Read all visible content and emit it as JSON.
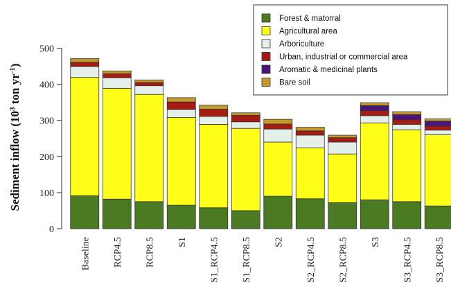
{
  "chart_data": {
    "type": "bar",
    "stacked": true,
    "ylabel_main": "Sediment inflow (10",
    "ylabel_sup1": "3",
    "ylabel_mid": " ton yr",
    "ylabel_sup2": "-1",
    "ylabel_end": ")",
    "ylim": [
      0,
      500
    ],
    "yticks": [
      0,
      100,
      200,
      300,
      400,
      500
    ],
    "grid": false,
    "legend_position": "top-right",
    "categories": [
      "Baseline",
      "RCP4.5",
      "RCP8.5",
      "S1",
      "S1_RCP4.5",
      "S1_RCP8.5",
      "S2",
      "S2_RCP4.5",
      "S2_RCP8.5",
      "S3",
      "S3_RCP4.5",
      "S3_RCP8.5"
    ],
    "series": [
      {
        "name": "Forest & matorral",
        "color": "#4a7a22",
        "values": [
          91,
          82,
          75,
          65,
          58,
          50,
          90,
          83,
          72,
          80,
          75,
          63
        ]
      },
      {
        "name": "Agricultural area",
        "color": "#ffff1a",
        "values": [
          328,
          307,
          297,
          243,
          231,
          228,
          150,
          141,
          135,
          213,
          199,
          197
        ]
      },
      {
        "name": "Arboriculture",
        "color": "#e6f0ea",
        "values": [
          30,
          29,
          24,
          22,
          22,
          18,
          36,
          35,
          33,
          20,
          15,
          13
        ]
      },
      {
        "name": "Urban, industrial or commercial area",
        "color": "#a81a14",
        "values": [
          12,
          11,
          9,
          21,
          20,
          18,
          14,
          12,
          12,
          14,
          13,
          11
        ]
      },
      {
        "name": "Aromatic & medicinal plants",
        "color": "#4a1478",
        "values": [
          0,
          0,
          0,
          0,
          0,
          0,
          0,
          0,
          0,
          14,
          14,
          14
        ]
      },
      {
        "name": "Bare soil",
        "color": "#c49a2c",
        "values": [
          10,
          8,
          7,
          12,
          11,
          7,
          13,
          10,
          7,
          8,
          8,
          6
        ]
      }
    ]
  }
}
